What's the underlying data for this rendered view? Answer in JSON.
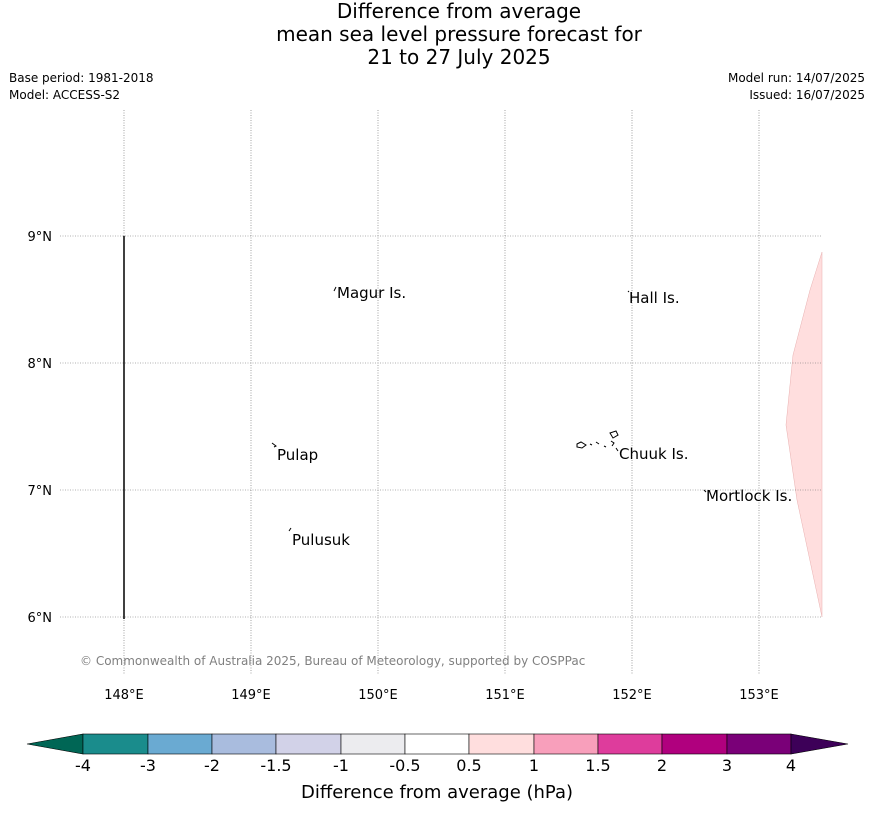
{
  "title": {
    "line1": "Difference from average",
    "line2": "mean sea level pressure forecast for",
    "line3": "21 to 27 July 2025"
  },
  "meta": {
    "base_period": "Base period: 1981-2018",
    "model": "Model: ACCESS-S2",
    "model_run": "Model run: 14/07/2025",
    "issued": "Issued: 16/07/2025"
  },
  "map": {
    "lon_ticks": [
      "148°E",
      "149°E",
      "150°E",
      "151°E",
      "152°E",
      "153°E"
    ],
    "lat_ticks": [
      "9°N",
      "8°N",
      "7°N",
      "6°N"
    ],
    "places": [
      {
        "name": "Magur Is.",
        "lon": 149.67,
        "lat": 8.57
      },
      {
        "name": "Hall Is.",
        "lon": 151.98,
        "lat": 8.53
      },
      {
        "name": "Pulap",
        "lon": 149.2,
        "lat": 7.32
      },
      {
        "name": "Chuuk Is.",
        "lon": 151.85,
        "lat": 7.3
      },
      {
        "name": "Mortlock Is.",
        "lon": 152.6,
        "lat": 6.98
      },
      {
        "name": "Pulusuk",
        "lon": 149.3,
        "lat": 6.65
      }
    ],
    "copyright": "© Commonwealth of Australia 2025, Bureau of Meteorology, supported by COSPPac",
    "anomaly_fill_color": "#ffdede"
  },
  "colorbar": {
    "title": "Difference from average (hPa)",
    "ticks": [
      "-4",
      "-3",
      "-2",
      "-1.5",
      "-1",
      "-0.5",
      "0.5",
      "1",
      "1.5",
      "2",
      "3",
      "4"
    ],
    "colors": [
      "#1a8c8c",
      "#6aaad2",
      "#a9bcde",
      "#d2d2e8",
      "#ececef",
      "#ffffff",
      "#ffdede",
      "#f89fbb",
      "#de3c9c",
      "#b0007e",
      "#7a0078"
    ],
    "under_color": "#006655",
    "over_color": "#3d0058"
  }
}
